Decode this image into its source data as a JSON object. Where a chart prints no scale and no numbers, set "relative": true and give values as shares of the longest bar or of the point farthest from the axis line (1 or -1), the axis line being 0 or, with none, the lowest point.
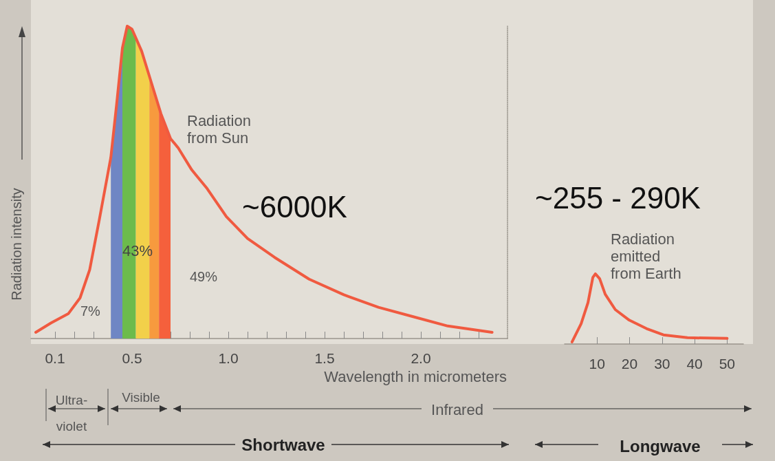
{
  "chart_data": [
    {
      "type": "line",
      "relative": true,
      "ylabel": "Radiation intensity",
      "xlabel": "Wavelength in micrometers",
      "xlim": [
        -0.025,
        2.45
      ],
      "xticks": [
        {
          "value": 0.1,
          "label": "0.1"
        },
        {
          "value": 0.2,
          "label": null
        },
        {
          "value": 0.3,
          "label": null
        },
        {
          "value": 0.4,
          "label": null
        },
        0.5,
        {
          "value": 0.6,
          "label": null
        },
        {
          "value": 0.7,
          "label": null
        },
        {
          "value": 0.8,
          "label": null
        },
        {
          "value": 0.9,
          "label": null
        },
        {
          "value": 1,
          "label": "1.0"
        },
        {
          "value": 1.1,
          "label": null
        },
        {
          "value": 1.2,
          "label": null
        },
        {
          "value": 1.3,
          "label": null
        },
        {
          "value": 1.4,
          "label": null
        },
        1.5,
        {
          "value": 1.6,
          "label": null
        },
        {
          "value": 1.7,
          "label": null
        },
        {
          "value": 1.8,
          "label": null
        },
        {
          "value": 1.9,
          "label": null
        },
        {
          "value": 2,
          "label": "2.0"
        },
        {
          "value": 2.1,
          "label": null
        },
        {
          "value": 2.2,
          "label": null
        },
        {
          "value": 2.3,
          "label": null
        }
      ],
      "series": [
        {
          "type": "area",
          "color": "#6f86c4",
          "x": [
            0.39,
            0.42,
            0.45
          ],
          "values": [
            0.58,
            0.75,
            0.93
          ]
        },
        {
          "type": "area",
          "color": "#6cbb4c",
          "x": [
            0.45,
            0.475,
            0.5,
            0.52
          ],
          "values": [
            0.93,
            1,
            0.99,
            0.96
          ]
        },
        {
          "type": "area",
          "color": "#f2d04a",
          "x": [
            0.52,
            0.55,
            0.59
          ],
          "values": [
            0.96,
            0.92,
            0.84
          ]
        },
        {
          "type": "area",
          "color": "#f79a3e",
          "x": [
            0.59,
            0.6,
            0.64
          ],
          "values": [
            0.84,
            0.82,
            0.74
          ]
        },
        {
          "type": "area",
          "color": "#f5603c",
          "x": [
            0.64,
            0.65,
            0.7
          ],
          "values": [
            0.74,
            0.72,
            0.64
          ]
        },
        {
          "color": "#f05a40",
          "x": [
            0,
            0.08,
            0.17,
            0.23,
            0.28,
            0.33,
            0.39,
            0.42,
            0.45,
            0.475,
            0.5,
            0.55,
            0.6,
            0.65,
            0.7,
            0.74,
            0.81,
            0.89,
            0.99,
            1.1,
            1.24,
            1.42,
            1.6,
            1.78,
            1.96,
            2.14,
            2.37
          ],
          "values": [
            0.02,
            0.05,
            0.08,
            0.13,
            0.22,
            0.38,
            0.58,
            0.75,
            0.93,
            1,
            0.99,
            0.92,
            0.82,
            0.72,
            0.64,
            0.61,
            0.54,
            0.48,
            0.39,
            0.32,
            0.26,
            0.19,
            0.14,
            0.1,
            0.07,
            0.04,
            0.02
          ]
        }
      ],
      "annotations": [
        "Radiation from Sun",
        "~6000K",
        "7%",
        "43%",
        "49%",
        "Ultra-violet",
        "Visible",
        "Infrared",
        "Shortwave"
      ]
    },
    {
      "type": "line",
      "relative": true,
      "xlim": [
        0,
        55
      ],
      "xticks": [
        10,
        20,
        30,
        40,
        50
      ],
      "series": [
        {
          "color": "#f05a40",
          "x": [
            2.3,
            5.1,
            7.2,
            8.7,
            9.5,
            10.8,
            12.5,
            15.6,
            19.9,
            25.2,
            30.4,
            37.8,
            50
          ],
          "values": [
            0.03,
            0.29,
            0.59,
            0.95,
            1,
            0.93,
            0.71,
            0.49,
            0.34,
            0.22,
            0.13,
            0.09,
            0.08
          ]
        }
      ],
      "annotations": [
        "~255 - 290K",
        "Radiation emitted from Earth",
        "Longwave"
      ]
    }
  ]
}
